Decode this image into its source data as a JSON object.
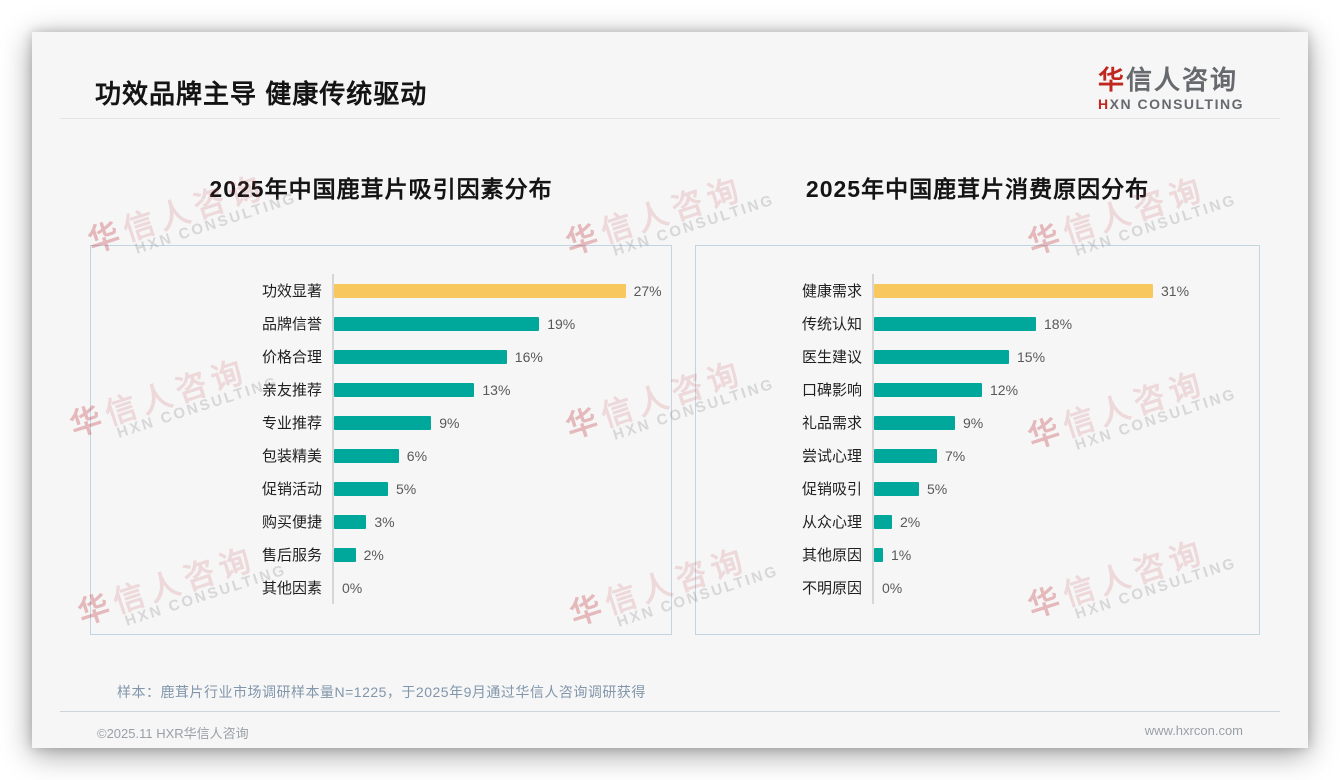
{
  "page": {
    "title": "功效品牌主导 健康传统驱动",
    "logo": {
      "zh_first": "华",
      "zh_rest": "信人咨询",
      "en_first": "H",
      "en_rest": "XN CONSULTING"
    },
    "watermark": {
      "line1_first": "华",
      "line1_rest": "信人咨询",
      "line2": "HXN CONSULTING"
    },
    "sample_note": "样本：鹿茸片行业市场调研样本量N=1225，于2025年9月通过华信人咨询调研获得",
    "footer": {
      "copyright": "©2025.11 HXR华信人咨询",
      "website": "www.hxrcon.com"
    }
  },
  "colors": {
    "highlight_bar": "#F8C85E",
    "default_bar": "#00A79B",
    "logo_red": "#C0271E"
  },
  "chart_data": [
    {
      "type": "bar",
      "orientation": "horizontal",
      "title": "2025年中国鹿茸片吸引因素分布",
      "categories": [
        "功效显著",
        "品牌信誉",
        "价格合理",
        "亲友推荐",
        "专业推荐",
        "包装精美",
        "促销活动",
        "购买便捷",
        "售后服务",
        "其他因素"
      ],
      "values": [
        27,
        19,
        16,
        13,
        9,
        6,
        5,
        3,
        2,
        0
      ],
      "unit": "%",
      "value_labels": [
        "27%",
        "19%",
        "16%",
        "13%",
        "9%",
        "6%",
        "5%",
        "3%",
        "2%",
        "0%"
      ],
      "highlight_index": 0,
      "xlim": [
        0,
        31
      ],
      "grid": false,
      "legend": false
    },
    {
      "type": "bar",
      "orientation": "horizontal",
      "title": "2025年中国鹿茸片消费原因分布",
      "categories": [
        "健康需求",
        "传统认知",
        "医生建议",
        "口碑影响",
        "礼品需求",
        "尝试心理",
        "促销吸引",
        "从众心理",
        "其他原因",
        "不明原因"
      ],
      "values": [
        31,
        18,
        15,
        12,
        9,
        7,
        5,
        2,
        1,
        0
      ],
      "unit": "%",
      "value_labels": [
        "31%",
        "18%",
        "15%",
        "12%",
        "9%",
        "7%",
        "5%",
        "2%",
        "1%",
        "0%"
      ],
      "highlight_index": 0,
      "xlim": [
        0,
        35
      ],
      "grid": false,
      "legend": false
    }
  ]
}
